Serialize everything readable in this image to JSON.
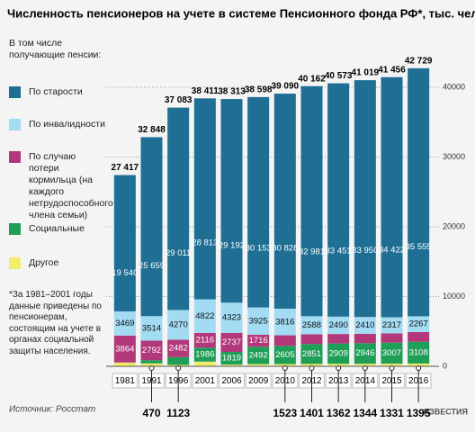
{
  "chart_data": {
    "type": "stacked-bar",
    "title": "Численность пенсионеров на учете в системе Пенсионного фонда РФ*, тыс. человек",
    "legend_title": "В том числе получающие пенсии:",
    "categories": [
      "1981",
      "1991",
      "1996",
      "2001",
      "2006",
      "2009",
      "2010",
      "2012",
      "2013",
      "2014",
      "2015",
      "2016"
    ],
    "series": [
      {
        "name": "По старости",
        "color": "#1f6f94",
        "values": [
          19540,
          25659,
          29011,
          28813,
          29192,
          30153,
          30828,
          32981,
          33451,
          33950,
          34422,
          35555
        ],
        "value_labels": [
          "19 540",
          "25 659",
          "29 011",
          "28 813",
          "29 192",
          "30 153",
          "30 828",
          "32 981",
          "33 451",
          "33 950",
          "34 422",
          "35 555"
        ]
      },
      {
        "name": "По инвалидности",
        "color": "#a3dbf3",
        "values": [
          3469,
          3514,
          4270,
          4822,
          4323,
          3925,
          3816,
          2588,
          2490,
          2410,
          2317,
          2267
        ],
        "value_labels": [
          "3469",
          "3514",
          "4270",
          "4822",
          "4323",
          "3925",
          "3816",
          "2588",
          "2490",
          "2410",
          "2317",
          "2267"
        ]
      },
      {
        "name": "По случаю потери кормильца (на каждого нетрудоспособного члена семьи)",
        "color": "#b2387a",
        "values": [
          3864,
          2792,
          2482,
          2116,
          2737,
          1716,
          1523,
          1401,
          1362,
          1344,
          1331,
          1395
        ],
        "value_labels": [
          "3864",
          "2792",
          "2482",
          "2116",
          "2737",
          "1716",
          "1523",
          "1401",
          "1362",
          "1344",
          "1331",
          "1395"
        ]
      },
      {
        "name": "Социальные",
        "color": "#1f9e57",
        "values": [
          null,
          470,
          1123,
          1986,
          1819,
          2492,
          2605,
          2851,
          2909,
          2946,
          3007,
          3108
        ],
        "value_labels": [
          null,
          "470",
          "1123",
          "1986",
          "1819",
          "2492",
          "2605",
          "2851",
          "2909",
          "2946",
          "3007",
          "3108"
        ]
      },
      {
        "name": "Другое",
        "color": "#f2ec6b",
        "values": [
          544,
          413,
          197,
          674,
          242,
          312,
          318,
          341,
          361,
          369,
          379,
          404
        ]
      }
    ],
    "totals": {
      "values": [
        27417,
        32848,
        37083,
        38411,
        38313,
        38598,
        39090,
        40162,
        40573,
        41019,
        41456,
        42729
      ],
      "value_labels": [
        "27 417",
        "32 848",
        "37 083",
        "38 411",
        "38 313",
        "38 598",
        "39 090",
        "40 162",
        "40 573",
        "41 019",
        "41 456",
        "42 729"
      ]
    },
    "ylim": [
      0,
      44000
    ],
    "yticks": [
      0,
      10000,
      20000,
      30000,
      40000
    ],
    "grid": true,
    "footnote": "*За 1981–2001 годы данные приведены по пенсионерам, состоящим на учете в органах социальной защиты населения.",
    "source": "Источник: Росстат",
    "logo": "ИЗВЕСТИЯ"
  }
}
